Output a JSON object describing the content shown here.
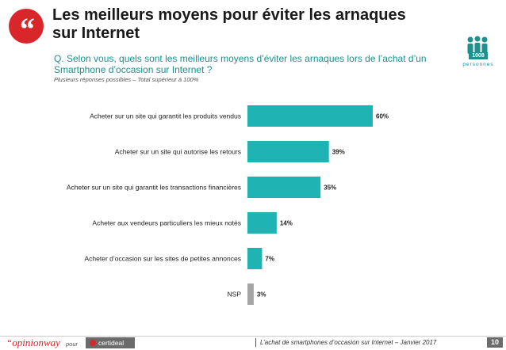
{
  "header": {
    "title": "Les meilleurs moyens pour éviter les arnaques sur Internet",
    "question": "Q. Selon vous, quels sont les meilleurs moyens d’éviter les arnaques lors de l’achat d’un Smartphone d’occasion sur Internet ?",
    "note": "Plusieurs réponses possibles – Total supérieur à 100%",
    "quote_glyph": "“"
  },
  "sample": {
    "count": "1008",
    "label": "personnes"
  },
  "chart_data": {
    "type": "bar",
    "orientation": "horizontal",
    "title": "",
    "xlabel": "",
    "ylabel": "",
    "xlim": [
      0,
      60
    ],
    "grid": false,
    "legend": "none",
    "categories": [
      "Acheter sur un site qui garantit les produits vendus",
      "Acheter sur un site qui autorise les retours",
      "Acheter sur un site qui garantit les transactions financières",
      "Acheter aux vendeurs particuliers les mieux notés",
      "Acheter d’occasion sur les sites de petites annonces",
      "NSP"
    ],
    "values": [
      60,
      39,
      35,
      14,
      7,
      3
    ],
    "value_labels": [
      "60%",
      "39%",
      "35%",
      "14%",
      "7%",
      "3%"
    ],
    "colors": [
      "#1fb3b3",
      "#1fb3b3",
      "#1fb3b3",
      "#1fb3b3",
      "#1fb3b3",
      "#a6a6a6"
    ]
  },
  "footer": {
    "brand": "“opinionway",
    "pour": "pour",
    "partner": "certideal",
    "caption": "L’achat de smartphones d’occasion sur Internet – Janvier 2017",
    "page": "10"
  }
}
